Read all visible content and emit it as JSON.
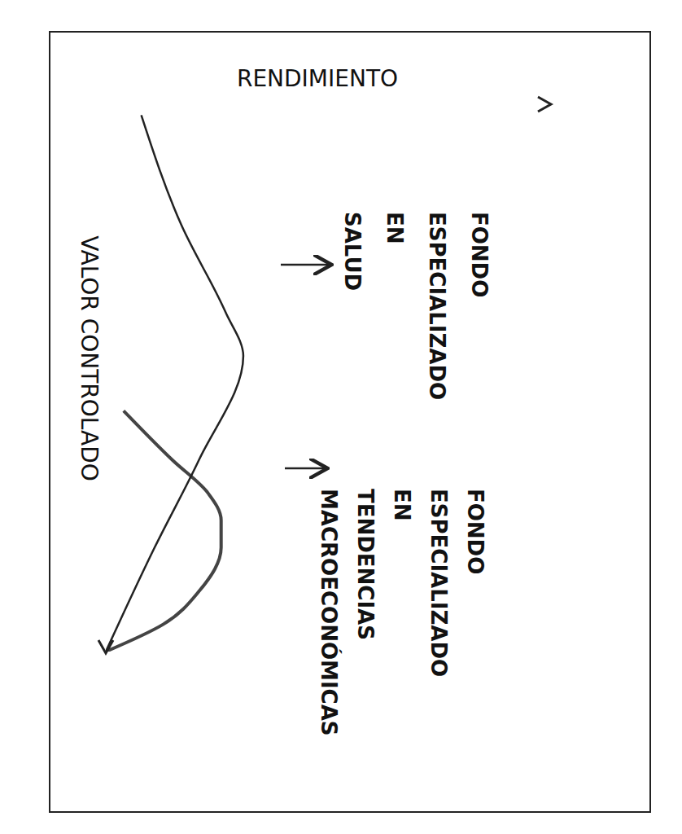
{
  "chart_data": {
    "type": "line",
    "x_label": "RENDIMIENTO",
    "y_label": "VALOR CONTROLADO",
    "xlim": [
      0,
      10
    ],
    "ylim": [
      0,
      10
    ],
    "tick_labels": false,
    "grid": false,
    "series": [
      {
        "name": "FONDO ESPECIALIZADO EN SALUD",
        "color": "#444444",
        "x": [
          0,
          1.3,
          2.1,
          2.6,
          2.6,
          2.3,
          1.5,
          0.4
        ],
        "y": [
          0,
          0.5,
          1.1,
          1.9,
          2.4,
          2.9,
          3.5,
          4.4
        ]
      },
      {
        "name": "FONDO ESPECIALIZADO EN TENDENCIAS MACROECONÓMICAS",
        "color": "#222222",
        "x": [
          0,
          1.1,
          2.1,
          3.1,
          2.7,
          1.7,
          0.8
        ],
        "y": [
          0,
          1.9,
          3.5,
          5.4,
          6.2,
          7.8,
          9.8
        ]
      }
    ]
  }
}
